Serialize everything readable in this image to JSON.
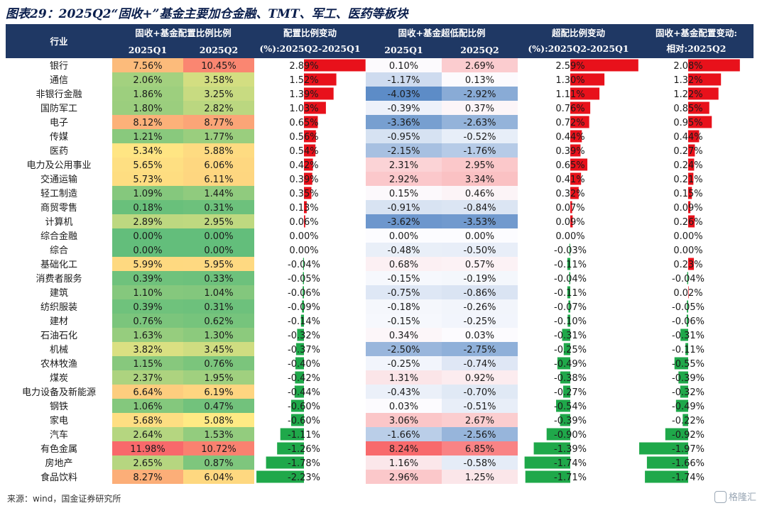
{
  "title": "图表29：2025Q2“固收+”基金主要加仓金融、TMT、军工、医药等板块",
  "source": "来源：wind，国金证券研究所",
  "watermark": "格隆汇",
  "colors": {
    "header_bg": "#1f3864",
    "header_text": "#ffffff",
    "bar_positive": "#e8111b",
    "bar_negative": "#1fa84a"
  },
  "chart_data": {
    "type": "table",
    "headers": {
      "industry": "行业",
      "alloc_group": "固收+基金配置比例比例",
      "alloc_q1": "2025Q1",
      "alloc_q2": "2025Q2",
      "alloc_change": "配置比例变动\n(%):2025Q2-2025Q1",
      "under_group": "固收+基金超低配比例",
      "under_q1": "2025Q1",
      "under_q2": "2025Q2",
      "over_change": "超配比例变动\n(%):2025Q2-2025Q1",
      "relative": "固收+基金配置变动:\n相对:2025Q2"
    },
    "rows": [
      {
        "industry": "银行",
        "alloc_q1": "7.56%",
        "alloc_q2": "10.45%",
        "alloc_change": 2.89,
        "under_q1": "0.10%",
        "under_q2": "2.69%",
        "over_change": 2.59,
        "relative": 2.08
      },
      {
        "industry": "通信",
        "alloc_q1": "2.06%",
        "alloc_q2": "3.58%",
        "alloc_change": 1.52,
        "under_q1": "-1.17%",
        "under_q2": "0.13%",
        "over_change": 1.3,
        "relative": 1.32
      },
      {
        "industry": "非银行金融",
        "alloc_q1": "1.86%",
        "alloc_q2": "3.25%",
        "alloc_change": 1.39,
        "under_q1": "-4.03%",
        "under_q2": "-2.92%",
        "over_change": 1.11,
        "relative": 1.22
      },
      {
        "industry": "国防军工",
        "alloc_q1": "1.80%",
        "alloc_q2": "2.82%",
        "alloc_change": 1.03,
        "under_q1": "-0.39%",
        "under_q2": "0.37%",
        "over_change": 0.76,
        "relative": 0.85
      },
      {
        "industry": "电子",
        "alloc_q1": "8.12%",
        "alloc_q2": "8.77%",
        "alloc_change": 0.65,
        "under_q1": "-3.36%",
        "under_q2": "-2.63%",
        "over_change": 0.72,
        "relative": 0.95
      },
      {
        "industry": "传媒",
        "alloc_q1": "1.21%",
        "alloc_q2": "1.77%",
        "alloc_change": 0.56,
        "under_q1": "-0.95%",
        "under_q2": "-0.52%",
        "over_change": 0.44,
        "relative": 0.44
      },
      {
        "industry": "医药",
        "alloc_q1": "5.34%",
        "alloc_q2": "5.88%",
        "alloc_change": 0.54,
        "under_q1": "-2.15%",
        "under_q2": "-1.76%",
        "over_change": 0.39,
        "relative": 0.27
      },
      {
        "industry": "电力及公用事业",
        "alloc_q1": "5.65%",
        "alloc_q2": "6.06%",
        "alloc_change": 0.42,
        "under_q1": "2.31%",
        "under_q2": "2.95%",
        "over_change": 0.65,
        "relative": 0.24
      },
      {
        "industry": "交通运输",
        "alloc_q1": "5.73%",
        "alloc_q2": "6.11%",
        "alloc_change": 0.39,
        "under_q1": "2.92%",
        "under_q2": "3.34%",
        "over_change": 0.41,
        "relative": 0.21
      },
      {
        "industry": "轻工制造",
        "alloc_q1": "1.09%",
        "alloc_q2": "1.44%",
        "alloc_change": 0.35,
        "under_q1": "0.15%",
        "under_q2": "0.46%",
        "over_change": 0.32,
        "relative": 0.15
      },
      {
        "industry": "商贸零售",
        "alloc_q1": "0.18%",
        "alloc_q2": "0.31%",
        "alloc_change": 0.13,
        "under_q1": "-0.91%",
        "under_q2": "-0.84%",
        "over_change": 0.07,
        "relative": 0.09
      },
      {
        "industry": "计算机",
        "alloc_q1": "2.89%",
        "alloc_q2": "2.95%",
        "alloc_change": 0.06,
        "under_q1": "-3.62%",
        "under_q2": "-3.53%",
        "over_change": 0.09,
        "relative": 0.26
      },
      {
        "industry": "综合金融",
        "alloc_q1": "0.00%",
        "alloc_q2": "0.00%",
        "alloc_change": 0.0,
        "under_q1": "0.00%",
        "under_q2": "0.00%",
        "over_change": 0.0,
        "relative": 0.0
      },
      {
        "industry": "综合",
        "alloc_q1": "0.00%",
        "alloc_q2": "0.00%",
        "alloc_change": 0.0,
        "under_q1": "-0.48%",
        "under_q2": "-0.50%",
        "over_change": -0.03,
        "relative": 0.0
      },
      {
        "industry": "基础化工",
        "alloc_q1": "5.99%",
        "alloc_q2": "5.95%",
        "alloc_change": -0.04,
        "under_q1": "0.68%",
        "under_q2": "0.57%",
        "over_change": -0.11,
        "relative": 0.23
      },
      {
        "industry": "消费者服务",
        "alloc_q1": "0.39%",
        "alloc_q2": "0.33%",
        "alloc_change": -0.05,
        "under_q1": "-0.15%",
        "under_q2": "-0.19%",
        "over_change": -0.04,
        "relative": -0.04
      },
      {
        "industry": "建筑",
        "alloc_q1": "1.10%",
        "alloc_q2": "1.04%",
        "alloc_change": -0.06,
        "under_q1": "-0.75%",
        "under_q2": "-0.86%",
        "over_change": -0.11,
        "relative": 0.02
      },
      {
        "industry": "纺织服装",
        "alloc_q1": "0.39%",
        "alloc_q2": "0.31%",
        "alloc_change": -0.09,
        "under_q1": "-0.18%",
        "under_q2": "-0.26%",
        "over_change": -0.07,
        "relative": -0.05
      },
      {
        "industry": "建材",
        "alloc_q1": "0.76%",
        "alloc_q2": "0.62%",
        "alloc_change": -0.14,
        "under_q1": "-0.15%",
        "under_q2": "-0.25%",
        "over_change": -0.1,
        "relative": -0.06
      },
      {
        "industry": "石油石化",
        "alloc_q1": "1.63%",
        "alloc_q2": "1.30%",
        "alloc_change": -0.32,
        "under_q1": "0.34%",
        "under_q2": "0.03%",
        "over_change": -0.31,
        "relative": -0.31
      },
      {
        "industry": "机械",
        "alloc_q1": "3.82%",
        "alloc_q2": "3.45%",
        "alloc_change": -0.37,
        "under_q1": "-2.50%",
        "under_q2": "-2.75%",
        "over_change": -0.25,
        "relative": -0.11
      },
      {
        "industry": "农林牧渔",
        "alloc_q1": "1.15%",
        "alloc_q2": "0.76%",
        "alloc_change": -0.4,
        "under_q1": "-0.25%",
        "under_q2": "-0.74%",
        "over_change": -0.49,
        "relative": -0.55
      },
      {
        "industry": "煤炭",
        "alloc_q1": "2.37%",
        "alloc_q2": "1.95%",
        "alloc_change": -0.42,
        "under_q1": "1.31%",
        "under_q2": "0.92%",
        "over_change": -0.38,
        "relative": -0.39
      },
      {
        "industry": "电力设备及新能源",
        "alloc_q1": "6.64%",
        "alloc_q2": "6.19%",
        "alloc_change": -0.44,
        "under_q1": "-0.43%",
        "under_q2": "-0.70%",
        "over_change": -0.27,
        "relative": -0.32
      },
      {
        "industry": "钢铁",
        "alloc_q1": "1.06%",
        "alloc_q2": "0.47%",
        "alloc_change": -0.6,
        "under_q1": "0.03%",
        "under_q2": "-0.51%",
        "over_change": -0.54,
        "relative": -0.49
      },
      {
        "industry": "家电",
        "alloc_q1": "5.68%",
        "alloc_q2": "5.08%",
        "alloc_change": -0.6,
        "under_q1": "3.06%",
        "under_q2": "2.67%",
        "over_change": -0.39,
        "relative": -0.22
      },
      {
        "industry": "汽车",
        "alloc_q1": "2.64%",
        "alloc_q2": "1.53%",
        "alloc_change": -1.11,
        "under_q1": "-1.66%",
        "under_q2": "-2.56%",
        "over_change": -0.9,
        "relative": -0.92
      },
      {
        "industry": "有色金属",
        "alloc_q1": "11.98%",
        "alloc_q2": "10.72%",
        "alloc_change": -1.26,
        "under_q1": "8.24%",
        "under_q2": "6.85%",
        "over_change": -1.39,
        "relative": -1.97
      },
      {
        "industry": "房地产",
        "alloc_q1": "2.65%",
        "alloc_q2": "0.87%",
        "alloc_change": -1.78,
        "under_q1": "1.16%",
        "under_q2": "-0.58%",
        "over_change": -1.74,
        "relative": -1.66
      },
      {
        "industry": "食品饮料",
        "alloc_q1": "8.27%",
        "alloc_q2": "6.04%",
        "alloc_change": -2.23,
        "under_q1": "2.96%",
        "under_q2": "1.25%",
        "over_change": -1.71,
        "relative": -1.74
      }
    ]
  }
}
